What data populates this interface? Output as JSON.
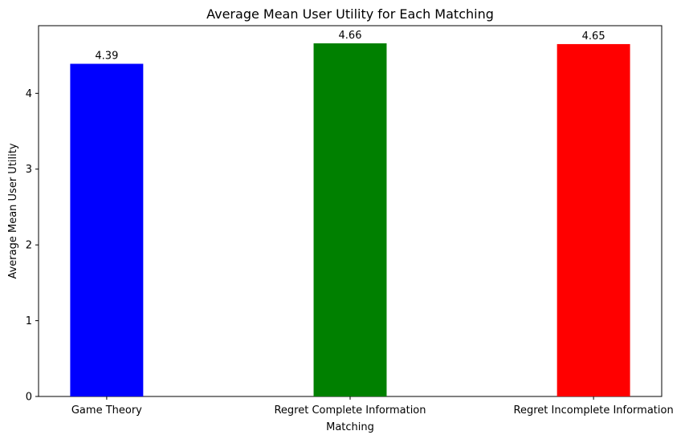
{
  "chart_data": {
    "type": "bar",
    "title": "Average Mean User Utility for Each Matching",
    "xlabel": "Matching",
    "ylabel": "Average Mean User Utility",
    "categories": [
      "Game Theory",
      "Regret Complete Information",
      "Regret Incomplete Information"
    ],
    "values": [
      4.39,
      4.66,
      4.65
    ],
    "value_labels": [
      "4.39",
      "4.66",
      "4.65"
    ],
    "colors": [
      "#0000ff",
      "#008000",
      "#ff0000"
    ],
    "ylim": [
      0,
      4.893
    ],
    "yticks": [
      0,
      1,
      2,
      3,
      4
    ],
    "grid": false,
    "legend": "none"
  }
}
